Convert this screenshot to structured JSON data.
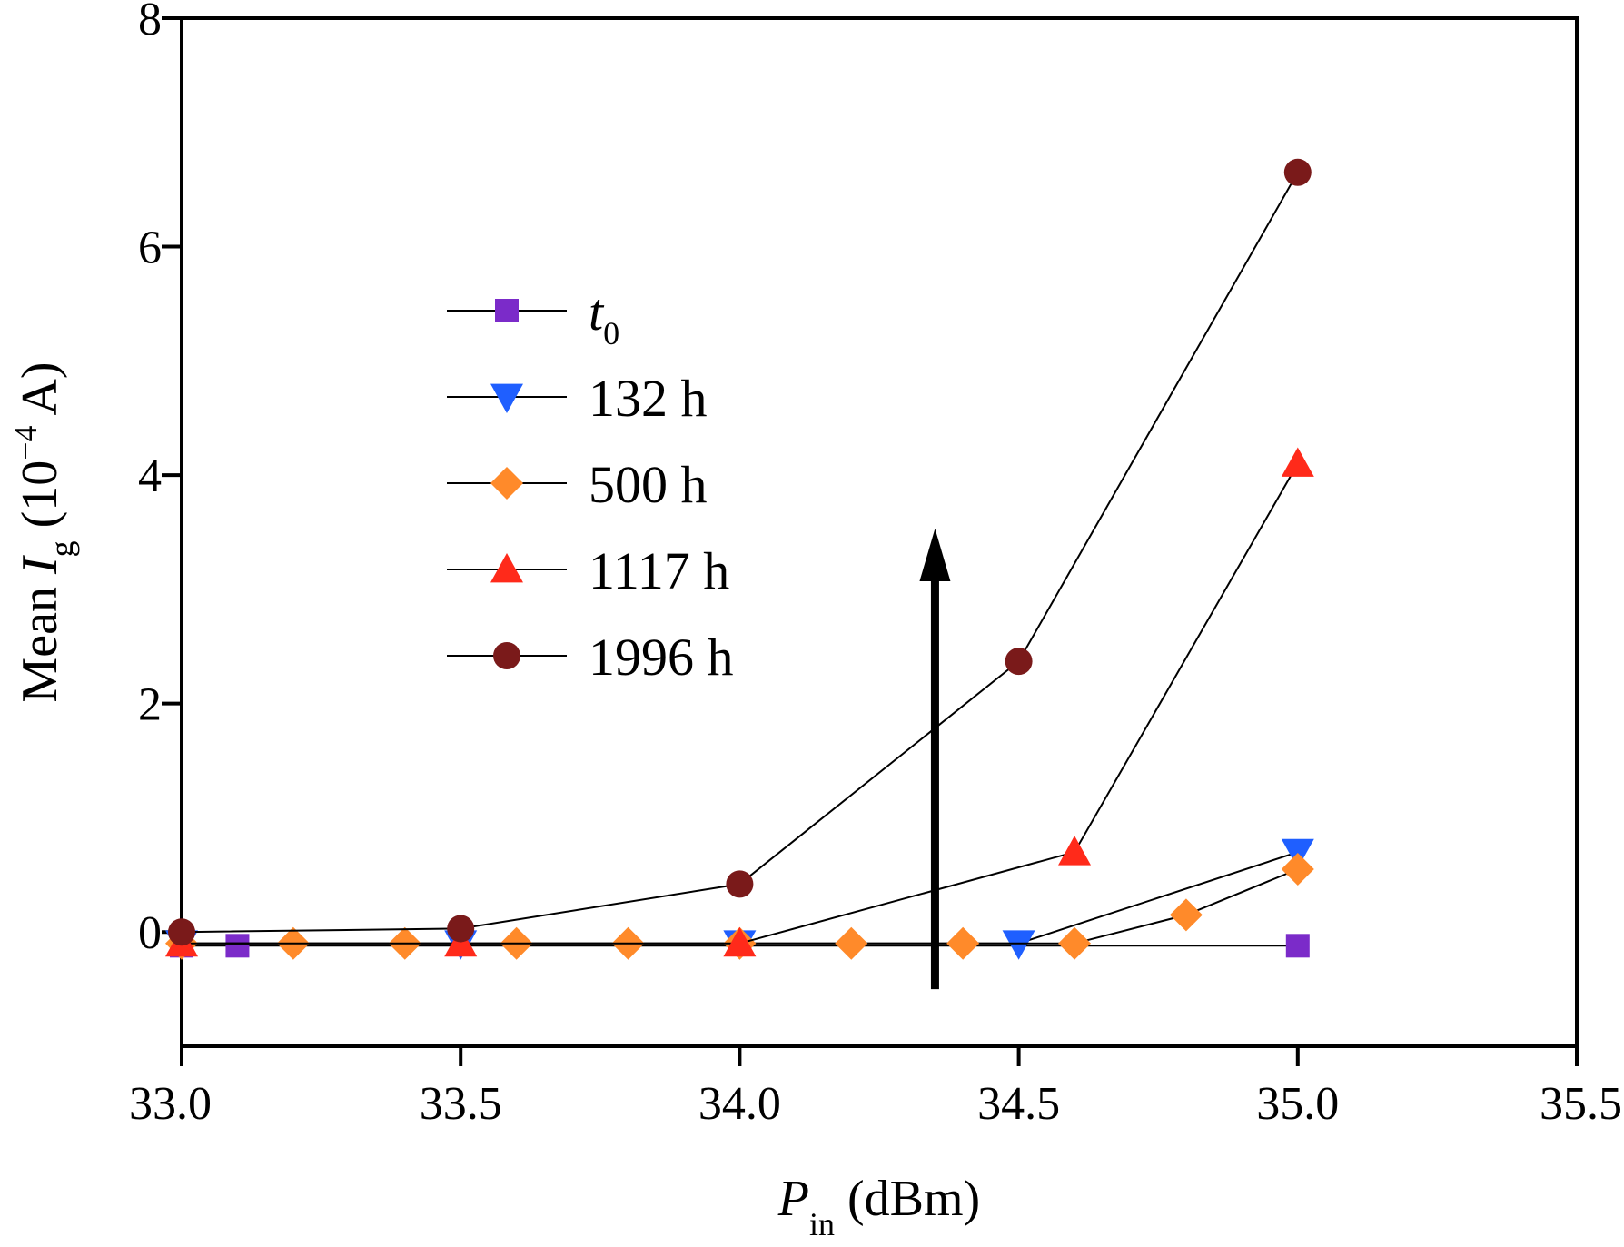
{
  "chart_data": {
    "type": "line",
    "xlabel": {
      "main": "P",
      "sub": "in",
      "unit": " (dBm)"
    },
    "ylabel": {
      "prefix": "Mean ",
      "var": "I",
      "sub": "g",
      "unit_pre": " (10",
      "exp": "−4",
      "unit_post": " A)"
    },
    "xlim": [
      33.0,
      35.5
    ],
    "ylim": [
      -1,
      8
    ],
    "x_ticks": [
      "33.0",
      "33.5",
      "34.0",
      "34.5",
      "35.0",
      "35.5"
    ],
    "y_ticks": [
      "0",
      "2",
      "4",
      "6",
      "8"
    ],
    "legend_position": "upper-left (inside)",
    "grid": false,
    "annotations": [
      {
        "type": "arrow",
        "x": 34.35,
        "y_from": -0.5,
        "y_to": 3.5
      }
    ],
    "series": [
      {
        "name": "t",
        "name_sub": "0",
        "marker": "square",
        "color": "#7B2BC9",
        "x": [
          33.0,
          33.1,
          35.0
        ],
        "y": [
          -0.12,
          -0.12,
          -0.12
        ]
      },
      {
        "name": "132 h",
        "marker": "triangle-down",
        "color": "#1F5FFF",
        "x": [
          33.0,
          33.5,
          34.0,
          34.5,
          35.0
        ],
        "y": [
          -0.1,
          -0.1,
          -0.1,
          -0.1,
          0.7
        ]
      },
      {
        "name": "500 h",
        "marker": "diamond",
        "color": "#FF8A2A",
        "x": [
          33.0,
          33.2,
          33.4,
          33.6,
          33.8,
          34.0,
          34.2,
          34.4,
          34.6,
          34.8,
          35.0
        ],
        "y": [
          -0.1,
          -0.1,
          -0.1,
          -0.1,
          -0.1,
          -0.1,
          -0.1,
          -0.1,
          -0.1,
          0.15,
          0.55
        ]
      },
      {
        "name": "1117 h",
        "marker": "triangle-up",
        "color": "#FF2A1A",
        "x": [
          33.0,
          33.5,
          34.0,
          34.6,
          35.0
        ],
        "y": [
          -0.1,
          -0.1,
          -0.1,
          0.7,
          4.1
        ]
      },
      {
        "name": "1996 h",
        "marker": "circle",
        "color": "#7A1A1A",
        "x": [
          33.0,
          33.5,
          34.0,
          34.5,
          35.0
        ],
        "y": [
          0.0,
          0.03,
          0.42,
          2.37,
          6.65
        ]
      }
    ]
  }
}
